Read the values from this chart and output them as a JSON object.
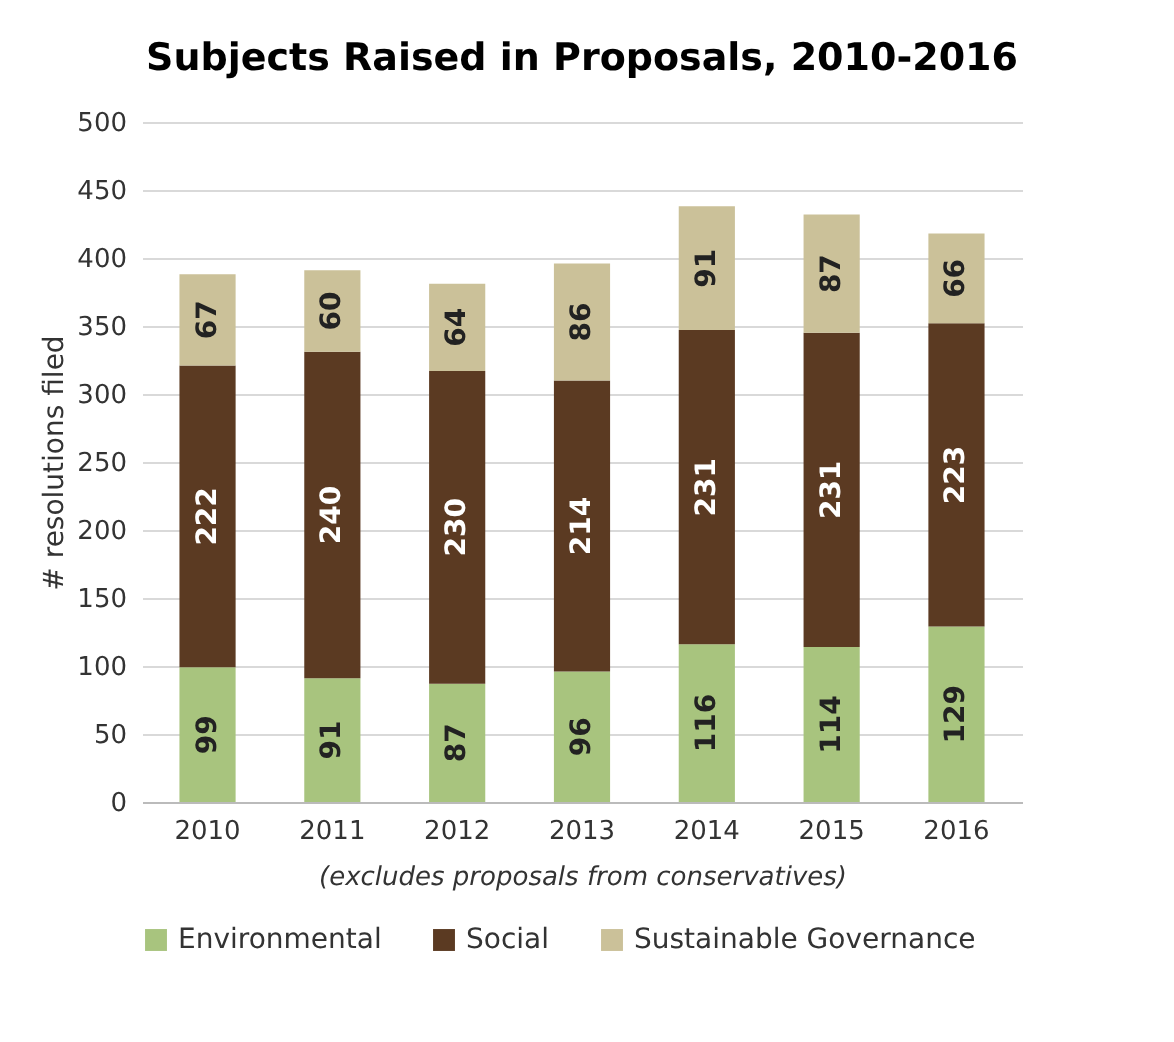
{
  "chart_data": {
    "type": "bar",
    "title": "Subjects Raised in Proposals, 2010-2016",
    "ylabel": "# resolutions filed",
    "annotations": [
      "(excludes proposals from conservatives)"
    ],
    "categories": [
      "2010",
      "2011",
      "2012",
      "2013",
      "2014",
      "2015",
      "2016"
    ],
    "stacked": true,
    "data_labels": true,
    "grid": "y",
    "legend": "bottom",
    "ylim": [
      0,
      500
    ],
    "yticks": [
      0,
      50,
      100,
      150,
      200,
      250,
      300,
      350,
      400,
      450,
      500
    ],
    "series": [
      {
        "name": "Environmental",
        "color": "#a8c47e",
        "values": [
          99,
          91,
          87,
          96,
          116,
          114,
          129
        ]
      },
      {
        "name": "Social",
        "color": "#5b3a22",
        "values": [
          222,
          240,
          230,
          214,
          231,
          231,
          223
        ]
      },
      {
        "name": "Sustainable Governance",
        "color": "#cbc199",
        "values": [
          67,
          60,
          64,
          86,
          91,
          87,
          66
        ]
      }
    ]
  }
}
